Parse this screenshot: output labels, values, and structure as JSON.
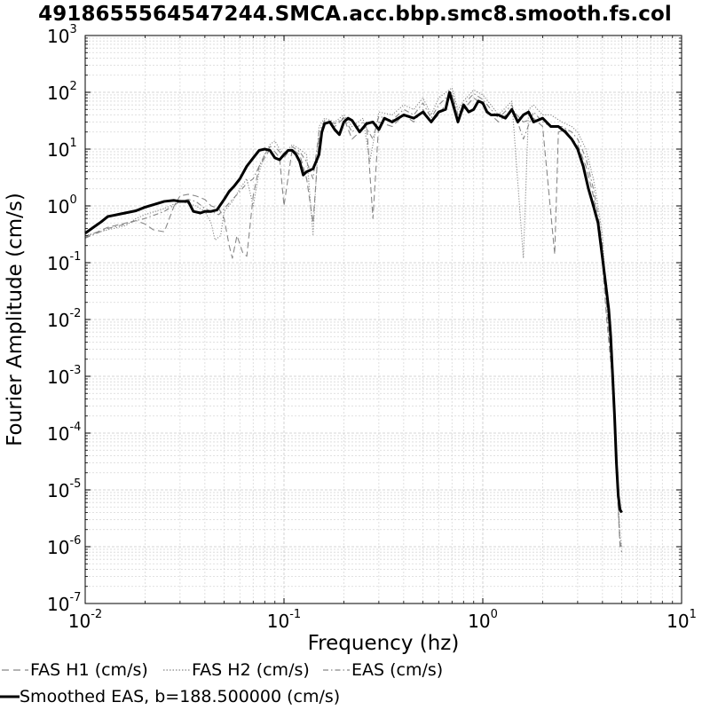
{
  "chart_data": {
    "type": "line",
    "title": "4918655564547244.SMCA.acc.bbp.smc8.smooth.fs.col",
    "xlabel": "Frequency (hz)",
    "ylabel": "Fourier Amplitude (cm/s)",
    "x_scale": "log",
    "y_scale": "log",
    "xlim": [
      0.01,
      10
    ],
    "ylim": [
      1e-07,
      1000
    ],
    "grid": true,
    "x_ticks": [
      {
        "value": 0.01,
        "base": "10",
        "exp": "-2"
      },
      {
        "value": 0.1,
        "base": "10",
        "exp": "-1"
      },
      {
        "value": 1,
        "base": "10",
        "exp": "0"
      },
      {
        "value": 10,
        "base": "10",
        "exp": "1"
      }
    ],
    "y_ticks": [
      {
        "value": 1e-07,
        "base": "10",
        "exp": "-7"
      },
      {
        "value": 1e-06,
        "base": "10",
        "exp": "-6"
      },
      {
        "value": 1e-05,
        "base": "10",
        "exp": "-5"
      },
      {
        "value": 0.0001,
        "base": "10",
        "exp": "-4"
      },
      {
        "value": 0.001,
        "base": "10",
        "exp": "-3"
      },
      {
        "value": 0.01,
        "base": "10",
        "exp": "-2"
      },
      {
        "value": 0.1,
        "base": "10",
        "exp": "-1"
      },
      {
        "value": 1,
        "base": "10",
        "exp": "0"
      },
      {
        "value": 10,
        "base": "10",
        "exp": "1"
      },
      {
        "value": 100,
        "base": "10",
        "exp": "2"
      },
      {
        "value": 1000,
        "base": "10",
        "exp": "3"
      }
    ],
    "legend_placement": "bottom",
    "series": [
      {
        "name": "FAS H1 (cm/s)",
        "style": "dashed",
        "color": "#888888",
        "points": [
          [
            0.01,
            0.28
          ],
          [
            0.013,
            0.42
          ],
          [
            0.016,
            0.5
          ],
          [
            0.018,
            0.55
          ],
          [
            0.02,
            0.48
          ],
          [
            0.022,
            0.38
          ],
          [
            0.025,
            0.35
          ],
          [
            0.028,
            1.0
          ],
          [
            0.03,
            1.5
          ],
          [
            0.033,
            1.6
          ],
          [
            0.036,
            1.5
          ],
          [
            0.04,
            1.3
          ],
          [
            0.043,
            1.0
          ],
          [
            0.047,
            0.9
          ],
          [
            0.05,
            0.6
          ],
          [
            0.053,
            0.2
          ],
          [
            0.055,
            0.12
          ],
          [
            0.058,
            0.3
          ],
          [
            0.062,
            0.15
          ],
          [
            0.065,
            0.13
          ],
          [
            0.07,
            1.5
          ],
          [
            0.075,
            5.0
          ],
          [
            0.08,
            7.0
          ],
          [
            0.085,
            10.0
          ],
          [
            0.09,
            9.0
          ],
          [
            0.095,
            7.0
          ],
          [
            0.1,
            1.0
          ],
          [
            0.11,
            10.0
          ],
          [
            0.12,
            8.0
          ],
          [
            0.13,
            3.0
          ],
          [
            0.14,
            0.5
          ],
          [
            0.15,
            15.0
          ],
          [
            0.16,
            30.0
          ],
          [
            0.18,
            25.0
          ],
          [
            0.2,
            35.0
          ],
          [
            0.22,
            15.0
          ],
          [
            0.24,
            20.0
          ],
          [
            0.26,
            30.0
          ],
          [
            0.28,
            0.6
          ],
          [
            0.3,
            30.0
          ],
          [
            0.35,
            25.0
          ],
          [
            0.4,
            40.0
          ],
          [
            0.45,
            30.0
          ],
          [
            0.5,
            50.0
          ],
          [
            0.55,
            30.0
          ],
          [
            0.6,
            40.0
          ],
          [
            0.7,
            90.0
          ],
          [
            0.75,
            30.0
          ],
          [
            0.8,
            50.0
          ],
          [
            0.9,
            80.0
          ],
          [
            1.0,
            60.0
          ],
          [
            1.1,
            40.0
          ],
          [
            1.2,
            30.0
          ],
          [
            1.4,
            50.0
          ],
          [
            1.6,
            30.0
          ],
          [
            1.8,
            35.0
          ],
          [
            2.0,
            25.0
          ],
          [
            2.3,
            0.14
          ],
          [
            2.4,
            20.0
          ],
          [
            2.6,
            22.0
          ],
          [
            2.8,
            15.0
          ],
          [
            3.0,
            12.0
          ],
          [
            3.3,
            5.0
          ],
          [
            3.6,
            1.5
          ],
          [
            3.8,
            0.5
          ],
          [
            4.0,
            0.1
          ],
          [
            4.2,
            0.01
          ],
          [
            4.5,
            0.0008
          ],
          [
            4.7,
            2e-05
          ],
          [
            4.9,
            1e-06
          ],
          [
            5.0,
            8e-07
          ]
        ]
      },
      {
        "name": "FAS H2 (cm/s)",
        "style": "dotted",
        "color": "#888888",
        "points": [
          [
            0.01,
            0.3
          ],
          [
            0.013,
            0.38
          ],
          [
            0.016,
            0.45
          ],
          [
            0.018,
            0.6
          ],
          [
            0.02,
            0.7
          ],
          [
            0.025,
            0.9
          ],
          [
            0.03,
            1.2
          ],
          [
            0.033,
            1.1
          ],
          [
            0.036,
            1.0
          ],
          [
            0.04,
            0.8
          ],
          [
            0.043,
            0.5
          ],
          [
            0.045,
            0.25
          ],
          [
            0.048,
            0.3
          ],
          [
            0.05,
            0.8
          ],
          [
            0.055,
            1.2
          ],
          [
            0.06,
            2.0
          ],
          [
            0.065,
            3.0
          ],
          [
            0.07,
            1.0
          ],
          [
            0.075,
            4.0
          ],
          [
            0.08,
            8.0
          ],
          [
            0.085,
            12.0
          ],
          [
            0.09,
            14.0
          ],
          [
            0.095,
            10.0
          ],
          [
            0.1,
            8.0
          ],
          [
            0.11,
            12.0
          ],
          [
            0.12,
            10.0
          ],
          [
            0.13,
            8.0
          ],
          [
            0.14,
            0.3
          ],
          [
            0.15,
            25.0
          ],
          [
            0.16,
            35.0
          ],
          [
            0.18,
            30.0
          ],
          [
            0.2,
            40.0
          ],
          [
            0.22,
            25.0
          ],
          [
            0.25,
            35.0
          ],
          [
            0.27,
            6.0
          ],
          [
            0.3,
            45.0
          ],
          [
            0.35,
            40.0
          ],
          [
            0.4,
            60.0
          ],
          [
            0.45,
            50.0
          ],
          [
            0.5,
            80.0
          ],
          [
            0.55,
            40.0
          ],
          [
            0.6,
            80.0
          ],
          [
            0.7,
            120.0
          ],
          [
            0.75,
            50.0
          ],
          [
            0.8,
            70.0
          ],
          [
            0.9,
            110.0
          ],
          [
            1.0,
            90.0
          ],
          [
            1.1,
            60.0
          ],
          [
            1.2,
            40.0
          ],
          [
            1.4,
            70.0
          ],
          [
            1.6,
            0.12
          ],
          [
            1.7,
            50.0
          ],
          [
            1.8,
            60.0
          ],
          [
            2.0,
            40.0
          ],
          [
            2.2,
            40.0
          ],
          [
            2.5,
            30.0
          ],
          [
            2.8,
            25.0
          ],
          [
            3.0,
            20.0
          ],
          [
            3.3,
            10.0
          ],
          [
            3.6,
            3.0
          ],
          [
            3.8,
            1.0
          ],
          [
            4.0,
            0.3
          ],
          [
            4.2,
            0.02
          ],
          [
            4.5,
            0.0015
          ],
          [
            4.7,
            3e-05
          ],
          [
            4.9,
            1.5e-06
          ],
          [
            5.0,
            1e-06
          ]
        ]
      },
      {
        "name": "EAS (cm/s)",
        "style": "dashdot",
        "color": "#888888",
        "points": [
          [
            0.01,
            0.27
          ],
          [
            0.013,
            0.4
          ],
          [
            0.016,
            0.48
          ],
          [
            0.018,
            0.55
          ],
          [
            0.02,
            0.6
          ],
          [
            0.025,
            0.8
          ],
          [
            0.03,
            1.2
          ],
          [
            0.033,
            1.3
          ],
          [
            0.036,
            1.2
          ],
          [
            0.04,
            0.9
          ],
          [
            0.043,
            0.8
          ],
          [
            0.047,
            0.7
          ],
          [
            0.05,
            0.9
          ],
          [
            0.055,
            1.3
          ],
          [
            0.06,
            1.8
          ],
          [
            0.065,
            2.5
          ],
          [
            0.07,
            3.0
          ],
          [
            0.075,
            5.0
          ],
          [
            0.08,
            8.0
          ],
          [
            0.085,
            11.0
          ],
          [
            0.09,
            11.0
          ],
          [
            0.095,
            9.0
          ],
          [
            0.1,
            7.0
          ],
          [
            0.11,
            11.0
          ],
          [
            0.12,
            9.0
          ],
          [
            0.13,
            6.0
          ],
          [
            0.14,
            3.0
          ],
          [
            0.15,
            20.0
          ],
          [
            0.16,
            32.0
          ],
          [
            0.18,
            28.0
          ],
          [
            0.2,
            36.0
          ],
          [
            0.22,
            20.0
          ],
          [
            0.25,
            30.0
          ],
          [
            0.28,
            15.0
          ],
          [
            0.3,
            38.0
          ],
          [
            0.35,
            32.0
          ],
          [
            0.4,
            50.0
          ],
          [
            0.45,
            40.0
          ],
          [
            0.5,
            65.0
          ],
          [
            0.55,
            35.0
          ],
          [
            0.6,
            60.0
          ],
          [
            0.7,
            100.0
          ],
          [
            0.75,
            40.0
          ],
          [
            0.8,
            60.0
          ],
          [
            0.9,
            95.0
          ],
          [
            1.0,
            75.0
          ],
          [
            1.1,
            50.0
          ],
          [
            1.2,
            35.0
          ],
          [
            1.4,
            60.0
          ],
          [
            1.6,
            15.0
          ],
          [
            1.8,
            45.0
          ],
          [
            2.0,
            30.0
          ],
          [
            2.2,
            25.0
          ],
          [
            2.5,
            25.0
          ],
          [
            2.8,
            20.0
          ],
          [
            3.0,
            15.0
          ],
          [
            3.3,
            7.0
          ],
          [
            3.6,
            2.0
          ],
          [
            3.8,
            0.7
          ],
          [
            4.0,
            0.2
          ],
          [
            4.2,
            0.015
          ],
          [
            4.5,
            0.001
          ],
          [
            4.7,
            2.5e-05
          ],
          [
            4.9,
            1.2e-06
          ],
          [
            5.0,
            9e-07
          ]
        ]
      },
      {
        "name": "Smoothed EAS, b=188.500000 (cm/s)",
        "style": "solid",
        "color": "#000000",
        "points": [
          [
            0.01,
            0.33
          ],
          [
            0.011,
            0.42
          ],
          [
            0.012,
            0.52
          ],
          [
            0.013,
            0.65
          ],
          [
            0.015,
            0.72
          ],
          [
            0.018,
            0.82
          ],
          [
            0.02,
            0.95
          ],
          [
            0.022,
            1.05
          ],
          [
            0.025,
            1.2
          ],
          [
            0.028,
            1.25
          ],
          [
            0.03,
            1.2
          ],
          [
            0.033,
            1.2
          ],
          [
            0.035,
            0.8
          ],
          [
            0.038,
            0.75
          ],
          [
            0.04,
            0.8
          ],
          [
            0.043,
            0.8
          ],
          [
            0.046,
            0.85
          ],
          [
            0.05,
            1.3
          ],
          [
            0.053,
            1.8
          ],
          [
            0.056,
            2.2
          ],
          [
            0.06,
            3.0
          ],
          [
            0.065,
            5.0
          ],
          [
            0.07,
            7.0
          ],
          [
            0.075,
            9.5
          ],
          [
            0.08,
            10.0
          ],
          [
            0.085,
            9.5
          ],
          [
            0.09,
            7.0
          ],
          [
            0.095,
            6.5
          ],
          [
            0.1,
            8.0
          ],
          [
            0.105,
            9.5
          ],
          [
            0.11,
            9.5
          ],
          [
            0.115,
            8.0
          ],
          [
            0.12,
            6.0
          ],
          [
            0.125,
            3.5
          ],
          [
            0.13,
            4.0
          ],
          [
            0.14,
            4.5
          ],
          [
            0.15,
            8.0
          ],
          [
            0.155,
            20.0
          ],
          [
            0.16,
            28.0
          ],
          [
            0.17,
            30.0
          ],
          [
            0.18,
            22.0
          ],
          [
            0.19,
            18.0
          ],
          [
            0.2,
            30.0
          ],
          [
            0.21,
            35.0
          ],
          [
            0.22,
            32.0
          ],
          [
            0.24,
            20.0
          ],
          [
            0.26,
            28.0
          ],
          [
            0.28,
            30.0
          ],
          [
            0.3,
            22.0
          ],
          [
            0.32,
            35.0
          ],
          [
            0.35,
            30.0
          ],
          [
            0.4,
            40.0
          ],
          [
            0.45,
            35.0
          ],
          [
            0.5,
            45.0
          ],
          [
            0.55,
            30.0
          ],
          [
            0.6,
            45.0
          ],
          [
            0.65,
            50.0
          ],
          [
            0.68,
            100.0
          ],
          [
            0.72,
            50.0
          ],
          [
            0.75,
            30.0
          ],
          [
            0.8,
            60.0
          ],
          [
            0.85,
            45.0
          ],
          [
            0.9,
            50.0
          ],
          [
            0.95,
            70.0
          ],
          [
            1.0,
            65.0
          ],
          [
            1.05,
            45.0
          ],
          [
            1.1,
            40.0
          ],
          [
            1.2,
            40.0
          ],
          [
            1.3,
            35.0
          ],
          [
            1.4,
            50.0
          ],
          [
            1.5,
            30.0
          ],
          [
            1.6,
            40.0
          ],
          [
            1.7,
            45.0
          ],
          [
            1.8,
            30.0
          ],
          [
            2.0,
            35.0
          ],
          [
            2.2,
            25.0
          ],
          [
            2.4,
            25.0
          ],
          [
            2.6,
            20.0
          ],
          [
            2.8,
            15.0
          ],
          [
            3.0,
            10.0
          ],
          [
            3.2,
            5.0
          ],
          [
            3.4,
            2.0
          ],
          [
            3.6,
            1.0
          ],
          [
            3.8,
            0.5
          ],
          [
            4.0,
            0.12
          ],
          [
            4.1,
            0.06
          ],
          [
            4.2,
            0.03
          ],
          [
            4.3,
            0.015
          ],
          [
            4.4,
            0.005
          ],
          [
            4.5,
            0.001
          ],
          [
            4.6,
            0.0002
          ],
          [
            4.7,
            3e-05
          ],
          [
            4.8,
            8e-06
          ],
          [
            4.9,
            4.5e-06
          ],
          [
            5.0,
            4e-06
          ]
        ]
      }
    ]
  }
}
